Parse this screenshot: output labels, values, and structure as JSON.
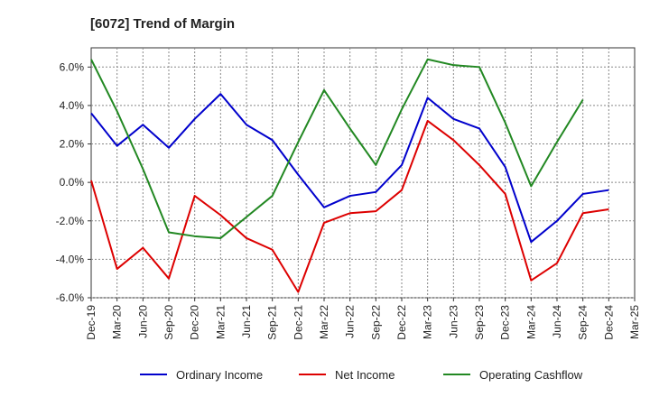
{
  "chart_data": {
    "type": "line",
    "title": "[6072]  Trend of Margin",
    "xlabel": "",
    "ylabel": "",
    "x": [
      "Dec-19",
      "Mar-20",
      "Jun-20",
      "Sep-20",
      "Dec-20",
      "Mar-21",
      "Jun-21",
      "Sep-21",
      "Dec-21",
      "Mar-22",
      "Jun-22",
      "Sep-22",
      "Dec-22",
      "Mar-23",
      "Jun-23",
      "Sep-23",
      "Dec-23",
      "Mar-24",
      "Jun-24",
      "Sep-24",
      "Dec-24",
      "Mar-25"
    ],
    "ylim": [
      -6.0,
      7.0
    ],
    "yticks": [
      -6.0,
      -4.0,
      -2.0,
      0.0,
      2.0,
      4.0,
      6.0
    ],
    "ytick_labels": [
      "-6.0%",
      "-4.0%",
      "-2.0%",
      "0.0%",
      "2.0%",
      "4.0%",
      "6.0%"
    ],
    "grid": true,
    "legend_position": "bottom",
    "series": [
      {
        "name": "Ordinary Income",
        "color": "#0000cc",
        "values": [
          3.6,
          1.9,
          3.0,
          1.8,
          3.3,
          4.6,
          3.0,
          2.2,
          0.4,
          -1.3,
          -0.7,
          -0.5,
          0.9,
          4.4,
          3.3,
          2.8,
          0.8,
          -3.1,
          -2.0,
          -0.6,
          -0.4,
          null
        ]
      },
      {
        "name": "Net Income",
        "color": "#dd0000",
        "values": [
          0.1,
          -4.5,
          -3.4,
          -5.0,
          -0.7,
          -1.7,
          -2.9,
          -3.5,
          -5.7,
          -2.1,
          -1.6,
          -1.5,
          -0.4,
          3.2,
          2.2,
          0.9,
          -0.6,
          -5.1,
          -4.2,
          -1.6,
          -1.4,
          null
        ]
      },
      {
        "name": "Operating Cashflow",
        "color": "#228822",
        "values": [
          6.4,
          3.7,
          0.7,
          -2.6,
          -2.8,
          -2.9,
          -1.8,
          -0.7,
          2.1,
          4.8,
          2.8,
          0.9,
          3.8,
          6.4,
          6.1,
          6.0,
          3.1,
          -0.2,
          2.1,
          4.3,
          null,
          null
        ]
      }
    ]
  }
}
